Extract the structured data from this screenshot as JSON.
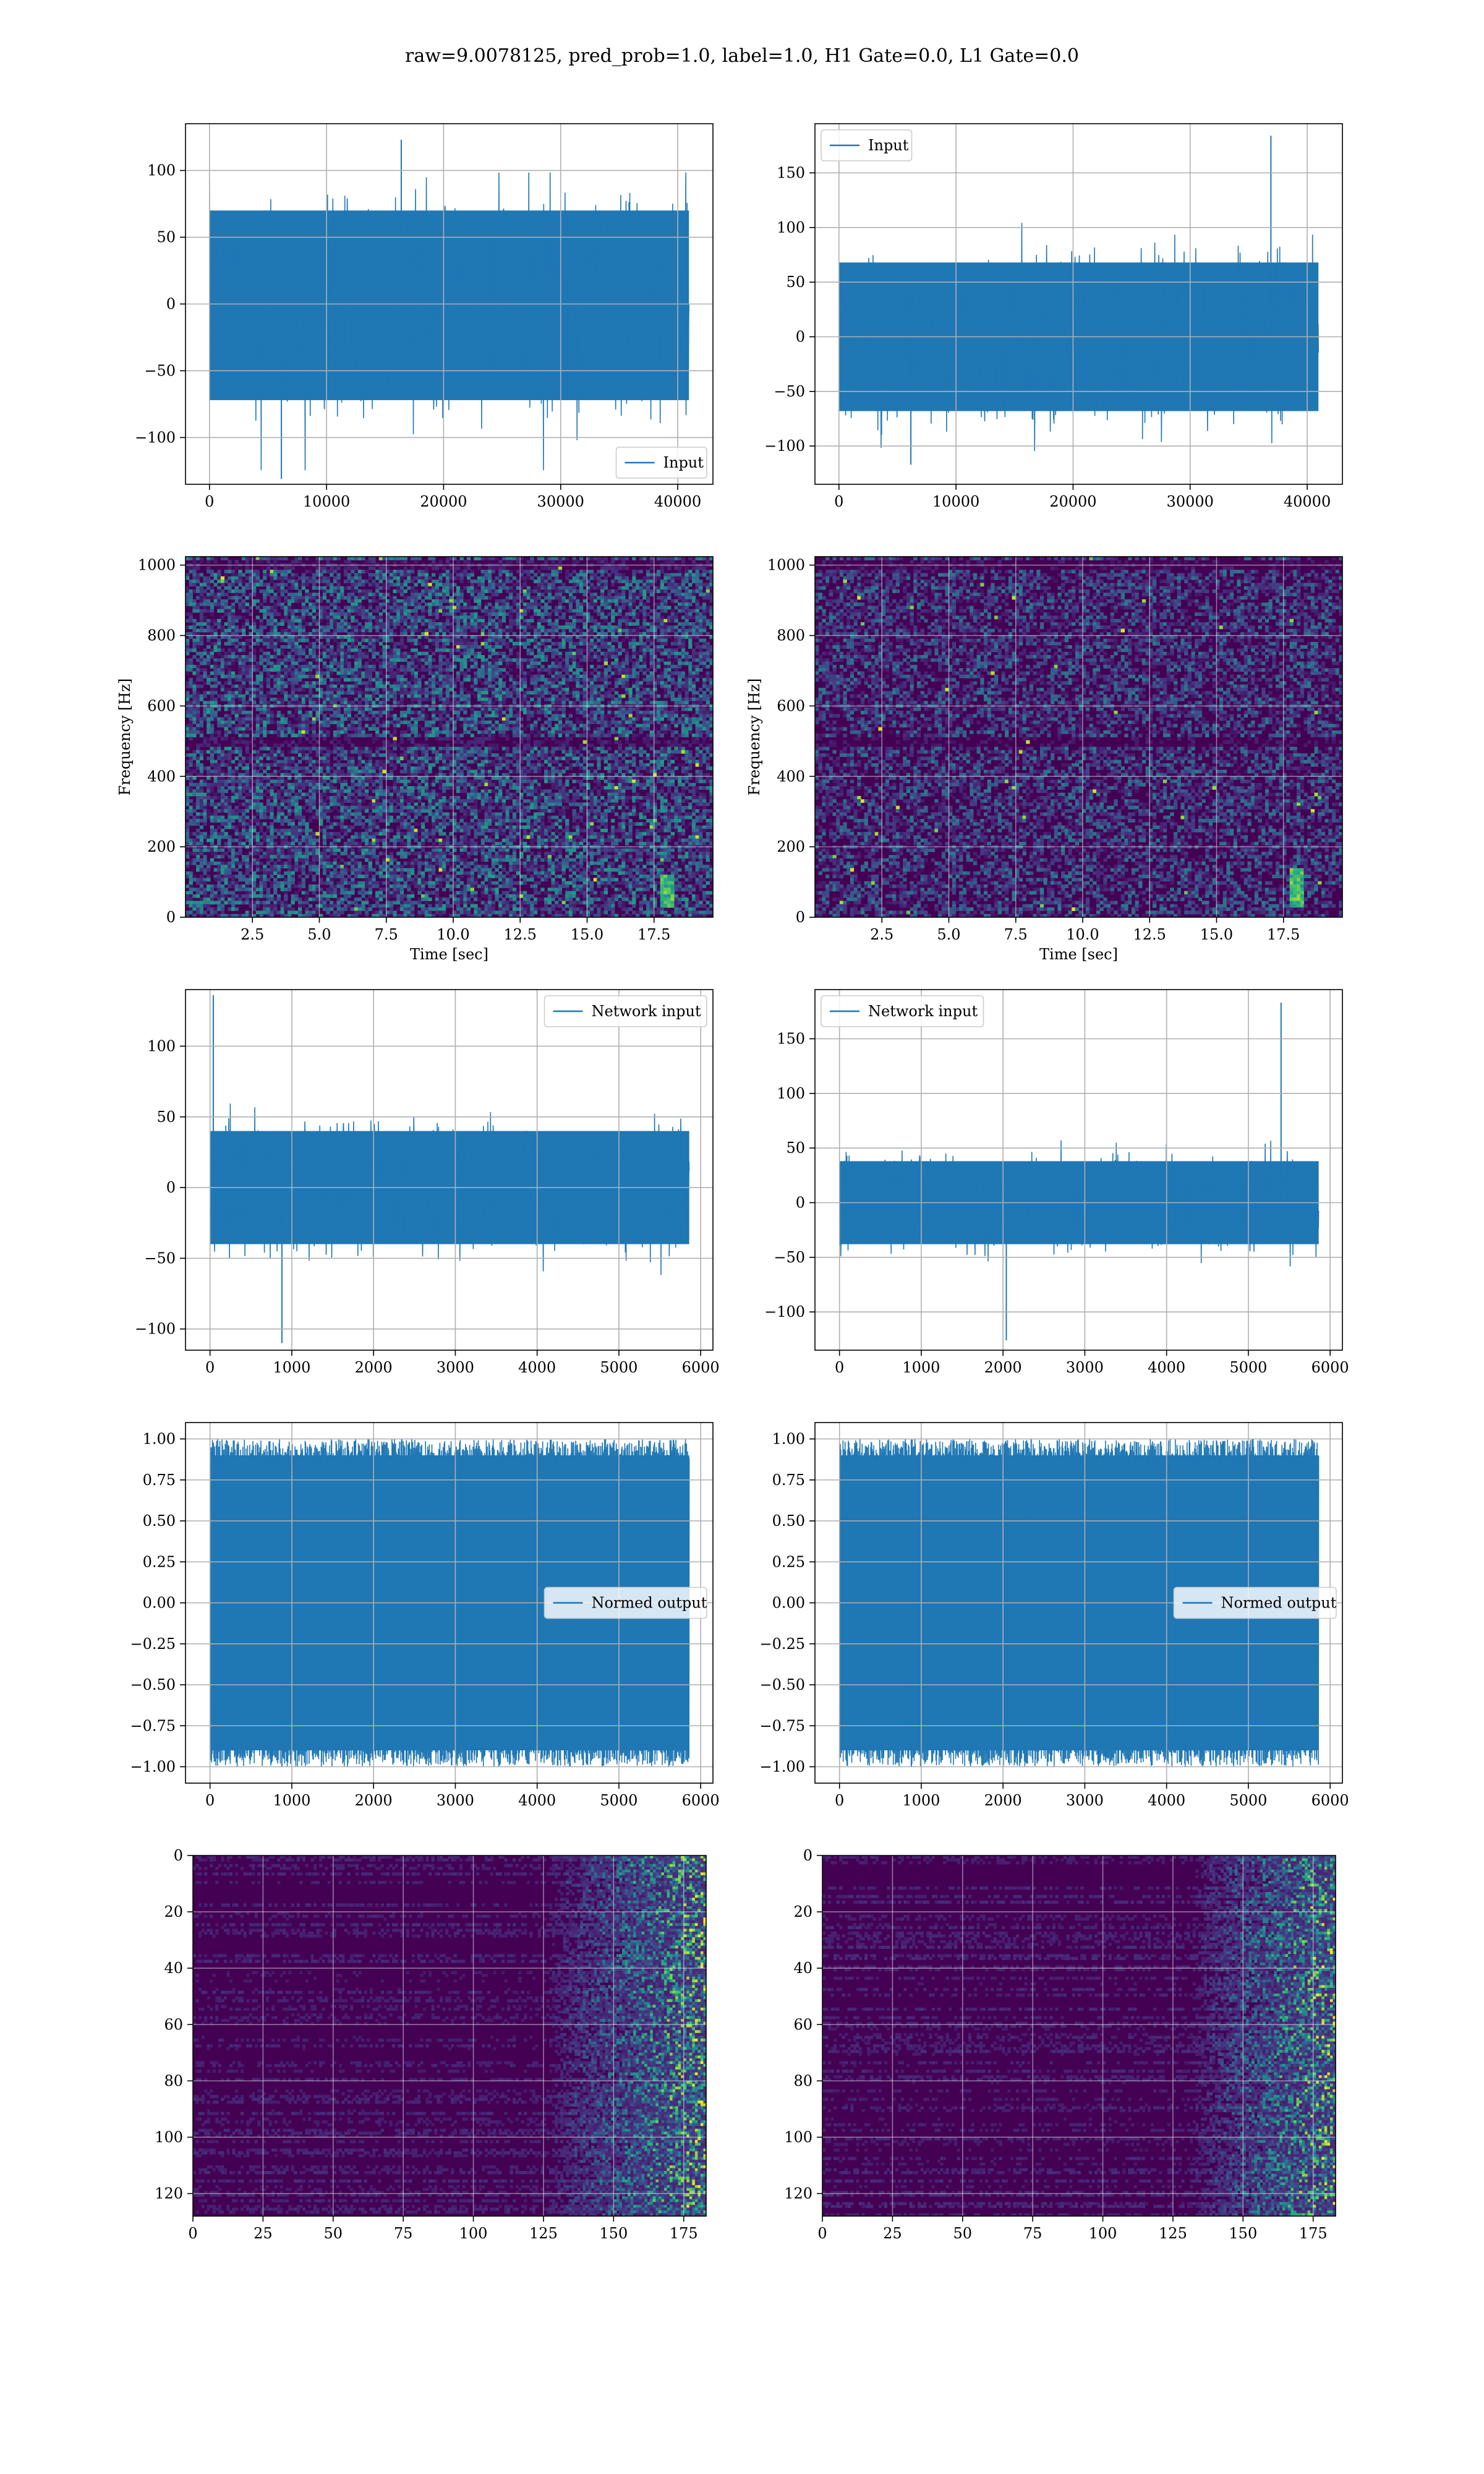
{
  "title": "raw=9.0078125, pred_prob=1.0, label=1.0, H1 Gate=0.0, L1 Gate=0.0",
  "colors": {
    "line": "#1f77b4",
    "viridis_dark": "#440154",
    "grid": "#b0b0b0"
  },
  "chart_data": [
    {
      "id": "input-h1",
      "type": "line",
      "title": "",
      "xlabel": "",
      "ylabel": "",
      "xlim": [
        -2048,
        43008
      ],
      "ylim": [
        -135,
        135
      ],
      "xticks": [
        0,
        10000,
        20000,
        30000,
        40000
      ],
      "yticks": [
        -100,
        -50,
        0,
        50,
        100
      ],
      "grid": true,
      "legend": {
        "label": "Input",
        "loc": "lower-right"
      },
      "series": [
        {
          "name": "Input",
          "n_samples": 40960,
          "x_range": [
            0,
            40960
          ],
          "band": [
            -72,
            70
          ],
          "peak_max": 123,
          "peak_min": -131
        }
      ]
    },
    {
      "id": "input-l1",
      "type": "line",
      "title": "",
      "xlabel": "",
      "ylabel": "",
      "xlim": [
        -2048,
        43008
      ],
      "ylim": [
        -135,
        195
      ],
      "xticks": [
        0,
        10000,
        20000,
        30000,
        40000
      ],
      "yticks": [
        -100,
        -50,
        0,
        50,
        100,
        150
      ],
      "grid": true,
      "legend": {
        "label": "Input",
        "loc": "top-left"
      },
      "series": [
        {
          "name": "Input",
          "n_samples": 40960,
          "x_range": [
            0,
            40960
          ],
          "band": [
            -68,
            68
          ],
          "peak_max": 184,
          "peak_max_x": 36900,
          "peak_min": -117
        }
      ]
    },
    {
      "id": "spectrogram-h1",
      "type": "heatmap",
      "title": "",
      "xlabel": "Time [sec]",
      "ylabel": "Frequency [Hz]",
      "xlim": [
        0,
        19.7
      ],
      "ylim": [
        0,
        1024
      ],
      "xticks": [
        2.5,
        5.0,
        7.5,
        10.0,
        12.5,
        15.0,
        17.5
      ],
      "yticks": [
        0,
        200,
        400,
        600,
        800,
        1000
      ],
      "grid": true,
      "colormap": "viridis",
      "signal_track": {
        "time": 18.0,
        "freq_range": [
          30,
          120
        ]
      }
    },
    {
      "id": "spectrogram-l1",
      "type": "heatmap",
      "title": "",
      "xlabel": "Time [sec]",
      "ylabel": "Frequency [Hz]",
      "xlim": [
        0,
        19.7
      ],
      "ylim": [
        0,
        1024
      ],
      "xticks": [
        2.5,
        5.0,
        7.5,
        10.0,
        12.5,
        15.0,
        17.5
      ],
      "yticks": [
        0,
        200,
        400,
        600,
        800,
        1000
      ],
      "grid": true,
      "colormap": "viridis",
      "signal_track": {
        "time": 18.0,
        "freq_range": [
          30,
          140
        ]
      }
    },
    {
      "id": "network-input-h1",
      "type": "line",
      "title": "",
      "xlabel": "",
      "ylabel": "",
      "xlim": [
        -300,
        6150
      ],
      "ylim": [
        -115,
        140
      ],
      "xticks": [
        0,
        1000,
        2000,
        3000,
        4000,
        5000,
        6000
      ],
      "yticks": [
        -100,
        -50,
        0,
        50,
        100
      ],
      "grid": true,
      "legend": {
        "label": "Network input",
        "loc": "top-right"
      },
      "series": [
        {
          "name": "Network input",
          "n_samples": 5860,
          "x_range": [
            0,
            5860
          ],
          "band": [
            -40,
            40
          ],
          "peak_max": 136,
          "peak_max_x": 40,
          "peak_min": -110
        }
      ]
    },
    {
      "id": "network-input-l1",
      "type": "line",
      "title": "",
      "xlabel": "",
      "ylabel": "",
      "xlim": [
        -300,
        6150
      ],
      "ylim": [
        -135,
        195
      ],
      "xticks": [
        0,
        1000,
        2000,
        3000,
        4000,
        5000,
        6000
      ],
      "yticks": [
        -100,
        -50,
        0,
        50,
        100,
        150
      ],
      "grid": true,
      "legend": {
        "label": "Network input",
        "loc": "top-left"
      },
      "series": [
        {
          "name": "Network input",
          "n_samples": 5860,
          "x_range": [
            0,
            5860
          ],
          "band": [
            -38,
            38
          ],
          "peak_max": 183,
          "peak_max_x": 5400,
          "peak_min": -126,
          "peak_min_x": 2040
        }
      ]
    },
    {
      "id": "normed-output-h1",
      "type": "line",
      "title": "",
      "xlabel": "",
      "ylabel": "",
      "xlim": [
        -300,
        6150
      ],
      "ylim": [
        -1.1,
        1.1
      ],
      "xticks": [
        0,
        1000,
        2000,
        3000,
        4000,
        5000,
        6000
      ],
      "yticks": [
        -1.0,
        -0.75,
        -0.5,
        -0.25,
        0.0,
        0.25,
        0.5,
        0.75,
        1.0
      ],
      "grid": true,
      "legend": {
        "label": "Normed output",
        "loc": "center-right"
      },
      "series": [
        {
          "name": "Normed output",
          "n_samples": 5860,
          "x_range": [
            0,
            5860
          ],
          "band": [
            -0.9,
            0.9
          ],
          "peak_max": 1.0,
          "peak_min": -1.0
        }
      ]
    },
    {
      "id": "normed-output-l1",
      "type": "line",
      "title": "",
      "xlabel": "",
      "ylabel": "",
      "xlim": [
        -300,
        6150
      ],
      "ylim": [
        -1.1,
        1.1
      ],
      "xticks": [
        0,
        1000,
        2000,
        3000,
        4000,
        5000,
        6000
      ],
      "yticks": [
        -1.0,
        -0.75,
        -0.5,
        -0.25,
        0.0,
        0.25,
        0.5,
        0.75,
        1.0
      ],
      "grid": true,
      "legend": {
        "label": "Normed output",
        "loc": "center-right"
      },
      "series": [
        {
          "name": "Normed output",
          "n_samples": 5860,
          "x_range": [
            0,
            5860
          ],
          "band": [
            -0.9,
            0.9
          ],
          "peak_max": 1.0,
          "peak_min": -1.0
        }
      ]
    },
    {
      "id": "feature-map-h1",
      "type": "heatmap",
      "title": "",
      "xlabel": "",
      "ylabel": "",
      "xlim": [
        0,
        183
      ],
      "ylim": [
        128,
        0
      ],
      "xticks": [
        0,
        25,
        50,
        75,
        100,
        125,
        150,
        175
      ],
      "yticks": [
        0,
        20,
        40,
        60,
        80,
        100,
        120
      ],
      "grid": true,
      "colormap": "viridis",
      "shape": [
        128,
        183
      ],
      "activation_onset_x": 125
    },
    {
      "id": "feature-map-l1",
      "type": "heatmap",
      "title": "",
      "xlabel": "",
      "ylabel": "",
      "xlim": [
        0,
        183
      ],
      "ylim": [
        128,
        0
      ],
      "xticks": [
        0,
        25,
        50,
        75,
        100,
        125,
        150,
        175
      ],
      "yticks": [
        0,
        20,
        40,
        60,
        80,
        100,
        120
      ],
      "grid": true,
      "colormap": "viridis",
      "shape": [
        128,
        183
      ],
      "activation_onset_x": 130
    }
  ]
}
